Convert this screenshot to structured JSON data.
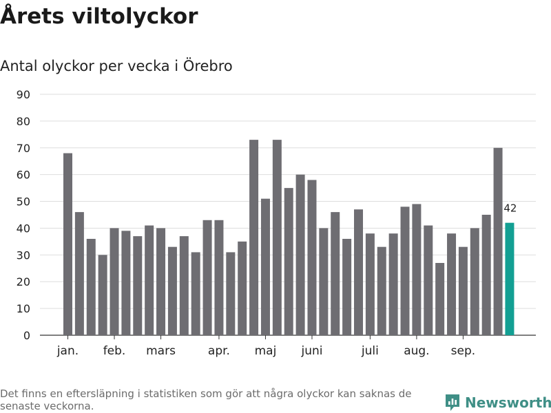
{
  "title": "Årets viltolyckor",
  "subtitle": "Antal olyckor per vecka i Örebro",
  "footnote": "Det finns en eftersläpning i statistiken som gör att några olyckor kan saknas de senaste veckorna.",
  "brand": {
    "name": "Newsworthy",
    "icon": "newsworthy-logo-icon",
    "color": "#3f8f86"
  },
  "colors": {
    "bar": "#6e6d72",
    "highlight": "#139f93",
    "grid": "#dddddd",
    "axis": "#333333"
  },
  "chart_data": {
    "type": "bar",
    "title": "Årets viltolyckor",
    "subtitle": "Antal olyckor per vecka i Örebro",
    "xlabel": "",
    "ylabel": "",
    "ylim": [
      0,
      90
    ],
    "yticks": [
      0,
      10,
      20,
      30,
      40,
      50,
      60,
      70,
      80,
      90
    ],
    "grid": true,
    "month_labels": [
      {
        "label": "jan.",
        "week": 1
      },
      {
        "label": "feb.",
        "week": 5
      },
      {
        "label": "mars",
        "week": 9
      },
      {
        "label": "apr.",
        "week": 14
      },
      {
        "label": "maj",
        "week": 18
      },
      {
        "label": "juni",
        "week": 22
      },
      {
        "label": "juli",
        "week": 27
      },
      {
        "label": "aug.",
        "week": 31
      },
      {
        "label": "sep.",
        "week": 35
      }
    ],
    "weeks": [
      1,
      2,
      3,
      4,
      5,
      6,
      7,
      8,
      9,
      10,
      11,
      12,
      13,
      14,
      15,
      16,
      17,
      18,
      19,
      20,
      21,
      22,
      23,
      24,
      25,
      26,
      27,
      28,
      29,
      30,
      31,
      32,
      33,
      34,
      35,
      36,
      37,
      38,
      39
    ],
    "values": [
      68,
      46,
      36,
      30,
      40,
      39,
      37,
      41,
      40,
      33,
      37,
      31,
      43,
      43,
      31,
      35,
      73,
      51,
      73,
      55,
      60,
      58,
      40,
      46,
      36,
      47,
      38,
      33,
      38,
      48,
      49,
      41,
      27,
      38,
      33,
      40,
      45,
      70,
      42
    ],
    "highlight_index": 38,
    "highlight_label": "42"
  }
}
